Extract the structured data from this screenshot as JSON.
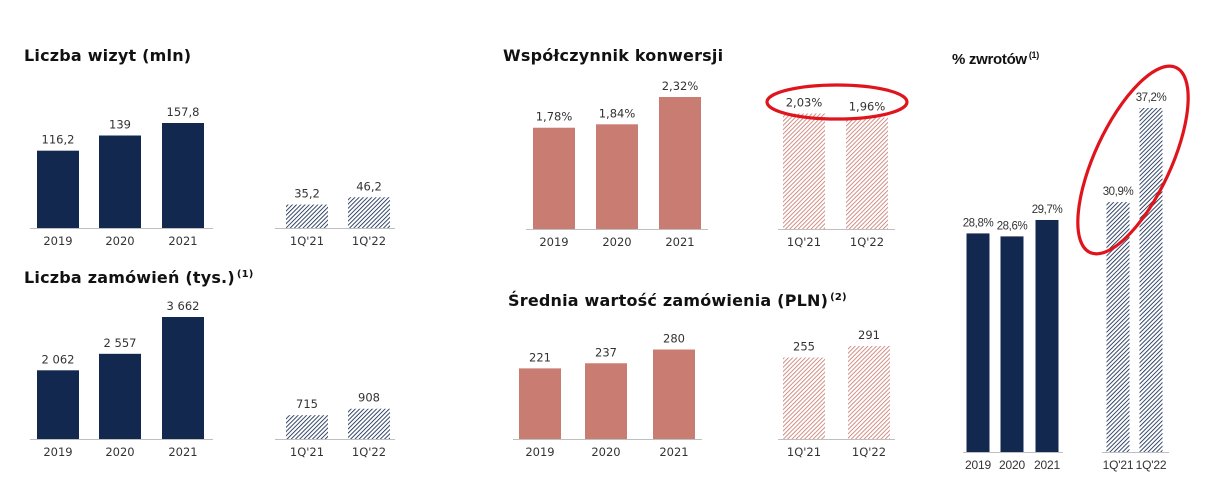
{
  "colors": {
    "navy": "#13284f",
    "salmon": "#c97d72",
    "axis": "#bfbfbf",
    "highlight": "#e0141c"
  },
  "chart_data": [
    {
      "id": "visits",
      "type": "bar",
      "title": "Liczba wizyt (mln)",
      "footnote": "",
      "categories": [
        "2019",
        "2020",
        "2021",
        "1Q'21",
        "1Q'22"
      ],
      "values": [
        116.2,
        139,
        157.8,
        35.2,
        46.2
      ],
      "value_labels": [
        "116,2",
        "139",
        "157,8",
        "35,2",
        "46,2"
      ],
      "color": "navy",
      "hatched_categories": [
        "1Q'21",
        "1Q'22"
      ],
      "ylim": [
        0,
        170
      ],
      "grid": false
    },
    {
      "id": "orders",
      "type": "bar",
      "title": "Liczba zamówień (tys.)",
      "footnote": "(1)",
      "categories": [
        "2019",
        "2020",
        "2021",
        "1Q'21",
        "1Q'22"
      ],
      "values": [
        2062,
        2557,
        3662,
        715,
        908
      ],
      "value_labels": [
        "2 062",
        "2 557",
        "3 662",
        "715",
        "908"
      ],
      "color": "navy",
      "hatched_categories": [
        "1Q'21",
        "1Q'22"
      ],
      "ylim": [
        0,
        3900
      ],
      "grid": false
    },
    {
      "id": "conversion",
      "type": "bar",
      "title": "Współczynnik konwersji",
      "footnote": "",
      "categories": [
        "2019",
        "2020",
        "2021",
        "1Q'21",
        "1Q'22"
      ],
      "values": [
        1.78,
        1.84,
        2.32,
        2.03,
        1.96
      ],
      "value_labels": [
        "1,78%",
        "1,84%",
        "2,32%",
        "2,03%",
        "1,96%"
      ],
      "color": "salmon",
      "hatched_categories": [
        "1Q'21",
        "1Q'22"
      ],
      "ylim": [
        0,
        2.55
      ],
      "grid": false,
      "highlight": "1Q'21 and 1Q'22 value labels"
    },
    {
      "id": "aov",
      "type": "bar",
      "title": "Średnia wartość zamówienia (PLN)",
      "footnote": "(2)",
      "categories": [
        "2019",
        "2020",
        "2021",
        "1Q'21",
        "1Q'22"
      ],
      "values": [
        221,
        237,
        280,
        255,
        291
      ],
      "value_labels": [
        "221",
        "237",
        "280",
        "255",
        "291"
      ],
      "color": "salmon",
      "hatched_categories": [
        "1Q'21",
        "1Q'22"
      ],
      "ylim": [
        0,
        321
      ],
      "grid": false
    },
    {
      "id": "returns",
      "type": "bar",
      "title": "% zwrotów",
      "footnote": "(1)",
      "categories": [
        "2019",
        "2020",
        "2021",
        "1Q'21",
        "1Q'22"
      ],
      "values": [
        28.8,
        28.6,
        29.7,
        30.9,
        37.2
      ],
      "value_labels": [
        "28,8%",
        "28,6%",
        "29,7%",
        "30,9%",
        "37,2%"
      ],
      "color": "navy",
      "hatched_categories": [
        "1Q'21",
        "1Q'22"
      ],
      "ylim": [
        14.16,
        39.0
      ],
      "grid": false,
      "highlight": "1Q'21 and 1Q'22 bars"
    }
  ]
}
